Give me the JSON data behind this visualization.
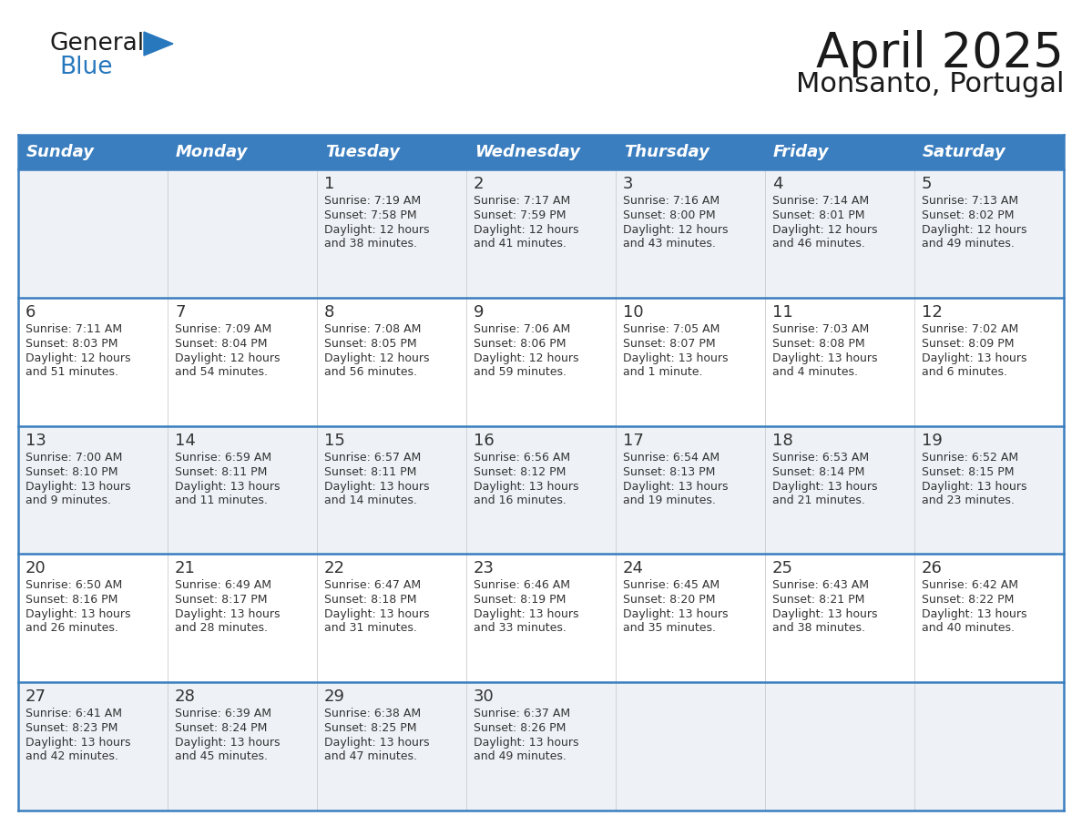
{
  "title": "April 2025",
  "subtitle": "Monsanto, Portugal",
  "days_of_week": [
    "Sunday",
    "Monday",
    "Tuesday",
    "Wednesday",
    "Thursday",
    "Friday",
    "Saturday"
  ],
  "header_bg": "#3a7ebf",
  "header_text": "#ffffff",
  "row_bg_odd": "#eef2f7",
  "row_bg_even": "#ffffff",
  "border_color": "#3a7ebf",
  "text_color": "#333333",
  "title_color": "#1a1a1a",
  "logo_general_color": "#1a1a1a",
  "logo_blue_color": "#2878be",
  "weeks": [
    [
      {
        "day": "",
        "sunrise": "",
        "sunset": "",
        "daylight": ""
      },
      {
        "day": "",
        "sunrise": "",
        "sunset": "",
        "daylight": ""
      },
      {
        "day": "1",
        "sunrise": "Sunrise: 7:19 AM",
        "sunset": "Sunset: 7:58 PM",
        "daylight": "Daylight: 12 hours\nand 38 minutes."
      },
      {
        "day": "2",
        "sunrise": "Sunrise: 7:17 AM",
        "sunset": "Sunset: 7:59 PM",
        "daylight": "Daylight: 12 hours\nand 41 minutes."
      },
      {
        "day": "3",
        "sunrise": "Sunrise: 7:16 AM",
        "sunset": "Sunset: 8:00 PM",
        "daylight": "Daylight: 12 hours\nand 43 minutes."
      },
      {
        "day": "4",
        "sunrise": "Sunrise: 7:14 AM",
        "sunset": "Sunset: 8:01 PM",
        "daylight": "Daylight: 12 hours\nand 46 minutes."
      },
      {
        "day": "5",
        "sunrise": "Sunrise: 7:13 AM",
        "sunset": "Sunset: 8:02 PM",
        "daylight": "Daylight: 12 hours\nand 49 minutes."
      }
    ],
    [
      {
        "day": "6",
        "sunrise": "Sunrise: 7:11 AM",
        "sunset": "Sunset: 8:03 PM",
        "daylight": "Daylight: 12 hours\nand 51 minutes."
      },
      {
        "day": "7",
        "sunrise": "Sunrise: 7:09 AM",
        "sunset": "Sunset: 8:04 PM",
        "daylight": "Daylight: 12 hours\nand 54 minutes."
      },
      {
        "day": "8",
        "sunrise": "Sunrise: 7:08 AM",
        "sunset": "Sunset: 8:05 PM",
        "daylight": "Daylight: 12 hours\nand 56 minutes."
      },
      {
        "day": "9",
        "sunrise": "Sunrise: 7:06 AM",
        "sunset": "Sunset: 8:06 PM",
        "daylight": "Daylight: 12 hours\nand 59 minutes."
      },
      {
        "day": "10",
        "sunrise": "Sunrise: 7:05 AM",
        "sunset": "Sunset: 8:07 PM",
        "daylight": "Daylight: 13 hours\nand 1 minute."
      },
      {
        "day": "11",
        "sunrise": "Sunrise: 7:03 AM",
        "sunset": "Sunset: 8:08 PM",
        "daylight": "Daylight: 13 hours\nand 4 minutes."
      },
      {
        "day": "12",
        "sunrise": "Sunrise: 7:02 AM",
        "sunset": "Sunset: 8:09 PM",
        "daylight": "Daylight: 13 hours\nand 6 minutes."
      }
    ],
    [
      {
        "day": "13",
        "sunrise": "Sunrise: 7:00 AM",
        "sunset": "Sunset: 8:10 PM",
        "daylight": "Daylight: 13 hours\nand 9 minutes."
      },
      {
        "day": "14",
        "sunrise": "Sunrise: 6:59 AM",
        "sunset": "Sunset: 8:11 PM",
        "daylight": "Daylight: 13 hours\nand 11 minutes."
      },
      {
        "day": "15",
        "sunrise": "Sunrise: 6:57 AM",
        "sunset": "Sunset: 8:11 PM",
        "daylight": "Daylight: 13 hours\nand 14 minutes."
      },
      {
        "day": "16",
        "sunrise": "Sunrise: 6:56 AM",
        "sunset": "Sunset: 8:12 PM",
        "daylight": "Daylight: 13 hours\nand 16 minutes."
      },
      {
        "day": "17",
        "sunrise": "Sunrise: 6:54 AM",
        "sunset": "Sunset: 8:13 PM",
        "daylight": "Daylight: 13 hours\nand 19 minutes."
      },
      {
        "day": "18",
        "sunrise": "Sunrise: 6:53 AM",
        "sunset": "Sunset: 8:14 PM",
        "daylight": "Daylight: 13 hours\nand 21 minutes."
      },
      {
        "day": "19",
        "sunrise": "Sunrise: 6:52 AM",
        "sunset": "Sunset: 8:15 PM",
        "daylight": "Daylight: 13 hours\nand 23 minutes."
      }
    ],
    [
      {
        "day": "20",
        "sunrise": "Sunrise: 6:50 AM",
        "sunset": "Sunset: 8:16 PM",
        "daylight": "Daylight: 13 hours\nand 26 minutes."
      },
      {
        "day": "21",
        "sunrise": "Sunrise: 6:49 AM",
        "sunset": "Sunset: 8:17 PM",
        "daylight": "Daylight: 13 hours\nand 28 minutes."
      },
      {
        "day": "22",
        "sunrise": "Sunrise: 6:47 AM",
        "sunset": "Sunset: 8:18 PM",
        "daylight": "Daylight: 13 hours\nand 31 minutes."
      },
      {
        "day": "23",
        "sunrise": "Sunrise: 6:46 AM",
        "sunset": "Sunset: 8:19 PM",
        "daylight": "Daylight: 13 hours\nand 33 minutes."
      },
      {
        "day": "24",
        "sunrise": "Sunrise: 6:45 AM",
        "sunset": "Sunset: 8:20 PM",
        "daylight": "Daylight: 13 hours\nand 35 minutes."
      },
      {
        "day": "25",
        "sunrise": "Sunrise: 6:43 AM",
        "sunset": "Sunset: 8:21 PM",
        "daylight": "Daylight: 13 hours\nand 38 minutes."
      },
      {
        "day": "26",
        "sunrise": "Sunrise: 6:42 AM",
        "sunset": "Sunset: 8:22 PM",
        "daylight": "Daylight: 13 hours\nand 40 minutes."
      }
    ],
    [
      {
        "day": "27",
        "sunrise": "Sunrise: 6:41 AM",
        "sunset": "Sunset: 8:23 PM",
        "daylight": "Daylight: 13 hours\nand 42 minutes."
      },
      {
        "day": "28",
        "sunrise": "Sunrise: 6:39 AM",
        "sunset": "Sunset: 8:24 PM",
        "daylight": "Daylight: 13 hours\nand 45 minutes."
      },
      {
        "day": "29",
        "sunrise": "Sunrise: 6:38 AM",
        "sunset": "Sunset: 8:25 PM",
        "daylight": "Daylight: 13 hours\nand 47 minutes."
      },
      {
        "day": "30",
        "sunrise": "Sunrise: 6:37 AM",
        "sunset": "Sunset: 8:26 PM",
        "daylight": "Daylight: 13 hours\nand 49 minutes."
      },
      {
        "day": "",
        "sunrise": "",
        "sunset": "",
        "daylight": ""
      },
      {
        "day": "",
        "sunrise": "",
        "sunset": "",
        "daylight": ""
      },
      {
        "day": "",
        "sunrise": "",
        "sunset": "",
        "daylight": ""
      }
    ]
  ]
}
